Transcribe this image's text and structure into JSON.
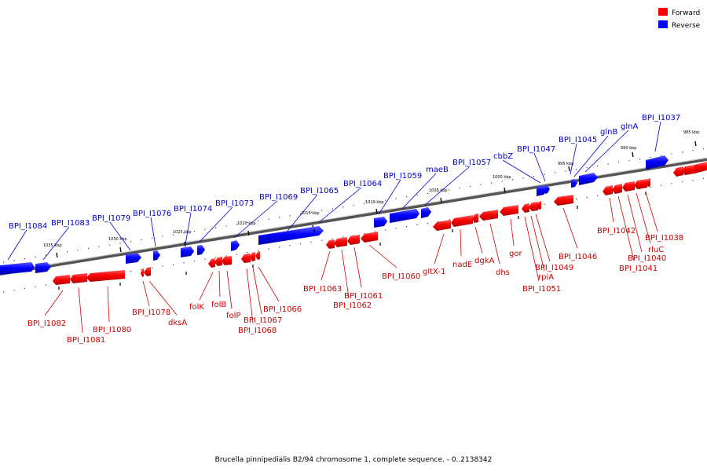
{
  "legend": {
    "forward_label": "Forward",
    "reverse_label": "Reverse",
    "forward_color": "#ff0000",
    "reverse_color": "#0000ff"
  },
  "caption": "Brucella pinnipedialis B2/94 chromosome 1, complete sequence. - 0..2138342",
  "scale_labels": [
    "985 kbp",
    "990 kbp",
    "995 kbp",
    "1000 kbp",
    "1005 kbp",
    "1010 kbp",
    "1015 kbp",
    "1020 kbp",
    "1025 kbp",
    "1030 kbp",
    "1035 kbp"
  ],
  "reverse_genes": [
    "BPI_I1037",
    "glnA",
    "glnB",
    "BPI_I1045",
    "BPI_I1047",
    "cbbZ",
    "BPI_I1057",
    "maeB",
    "BPI_I1059",
    "BPI_I1064",
    "BPI_I1065",
    "BPI_I1069",
    "BPI_I1073",
    "BPI_I1074",
    "BPI_I1076",
    "BPI_I1079",
    "BPI_I1083",
    "BPI_I1084"
  ],
  "forward_genes": [
    "BPI_I1038",
    "rluC",
    "BPI_I1040",
    "BPI_I1041",
    "BPI_I1042",
    "BPI_I1046",
    "BPI_I1049",
    "rpiA",
    "BPI_I1051",
    "gor",
    "dhs",
    "dgkA",
    "nadE",
    "gltX-1",
    "BPI_I1060",
    "BPI_I1061",
    "BPI_I1062",
    "BPI_I1063",
    "BPI_I1066",
    "BPI_I1067",
    "BPI_I1068",
    "folP",
    "folB",
    "folK",
    "dksA",
    "BPI_I1078",
    "BPI_I1080",
    "BPI_I1081",
    "BPI_I1082"
  ]
}
